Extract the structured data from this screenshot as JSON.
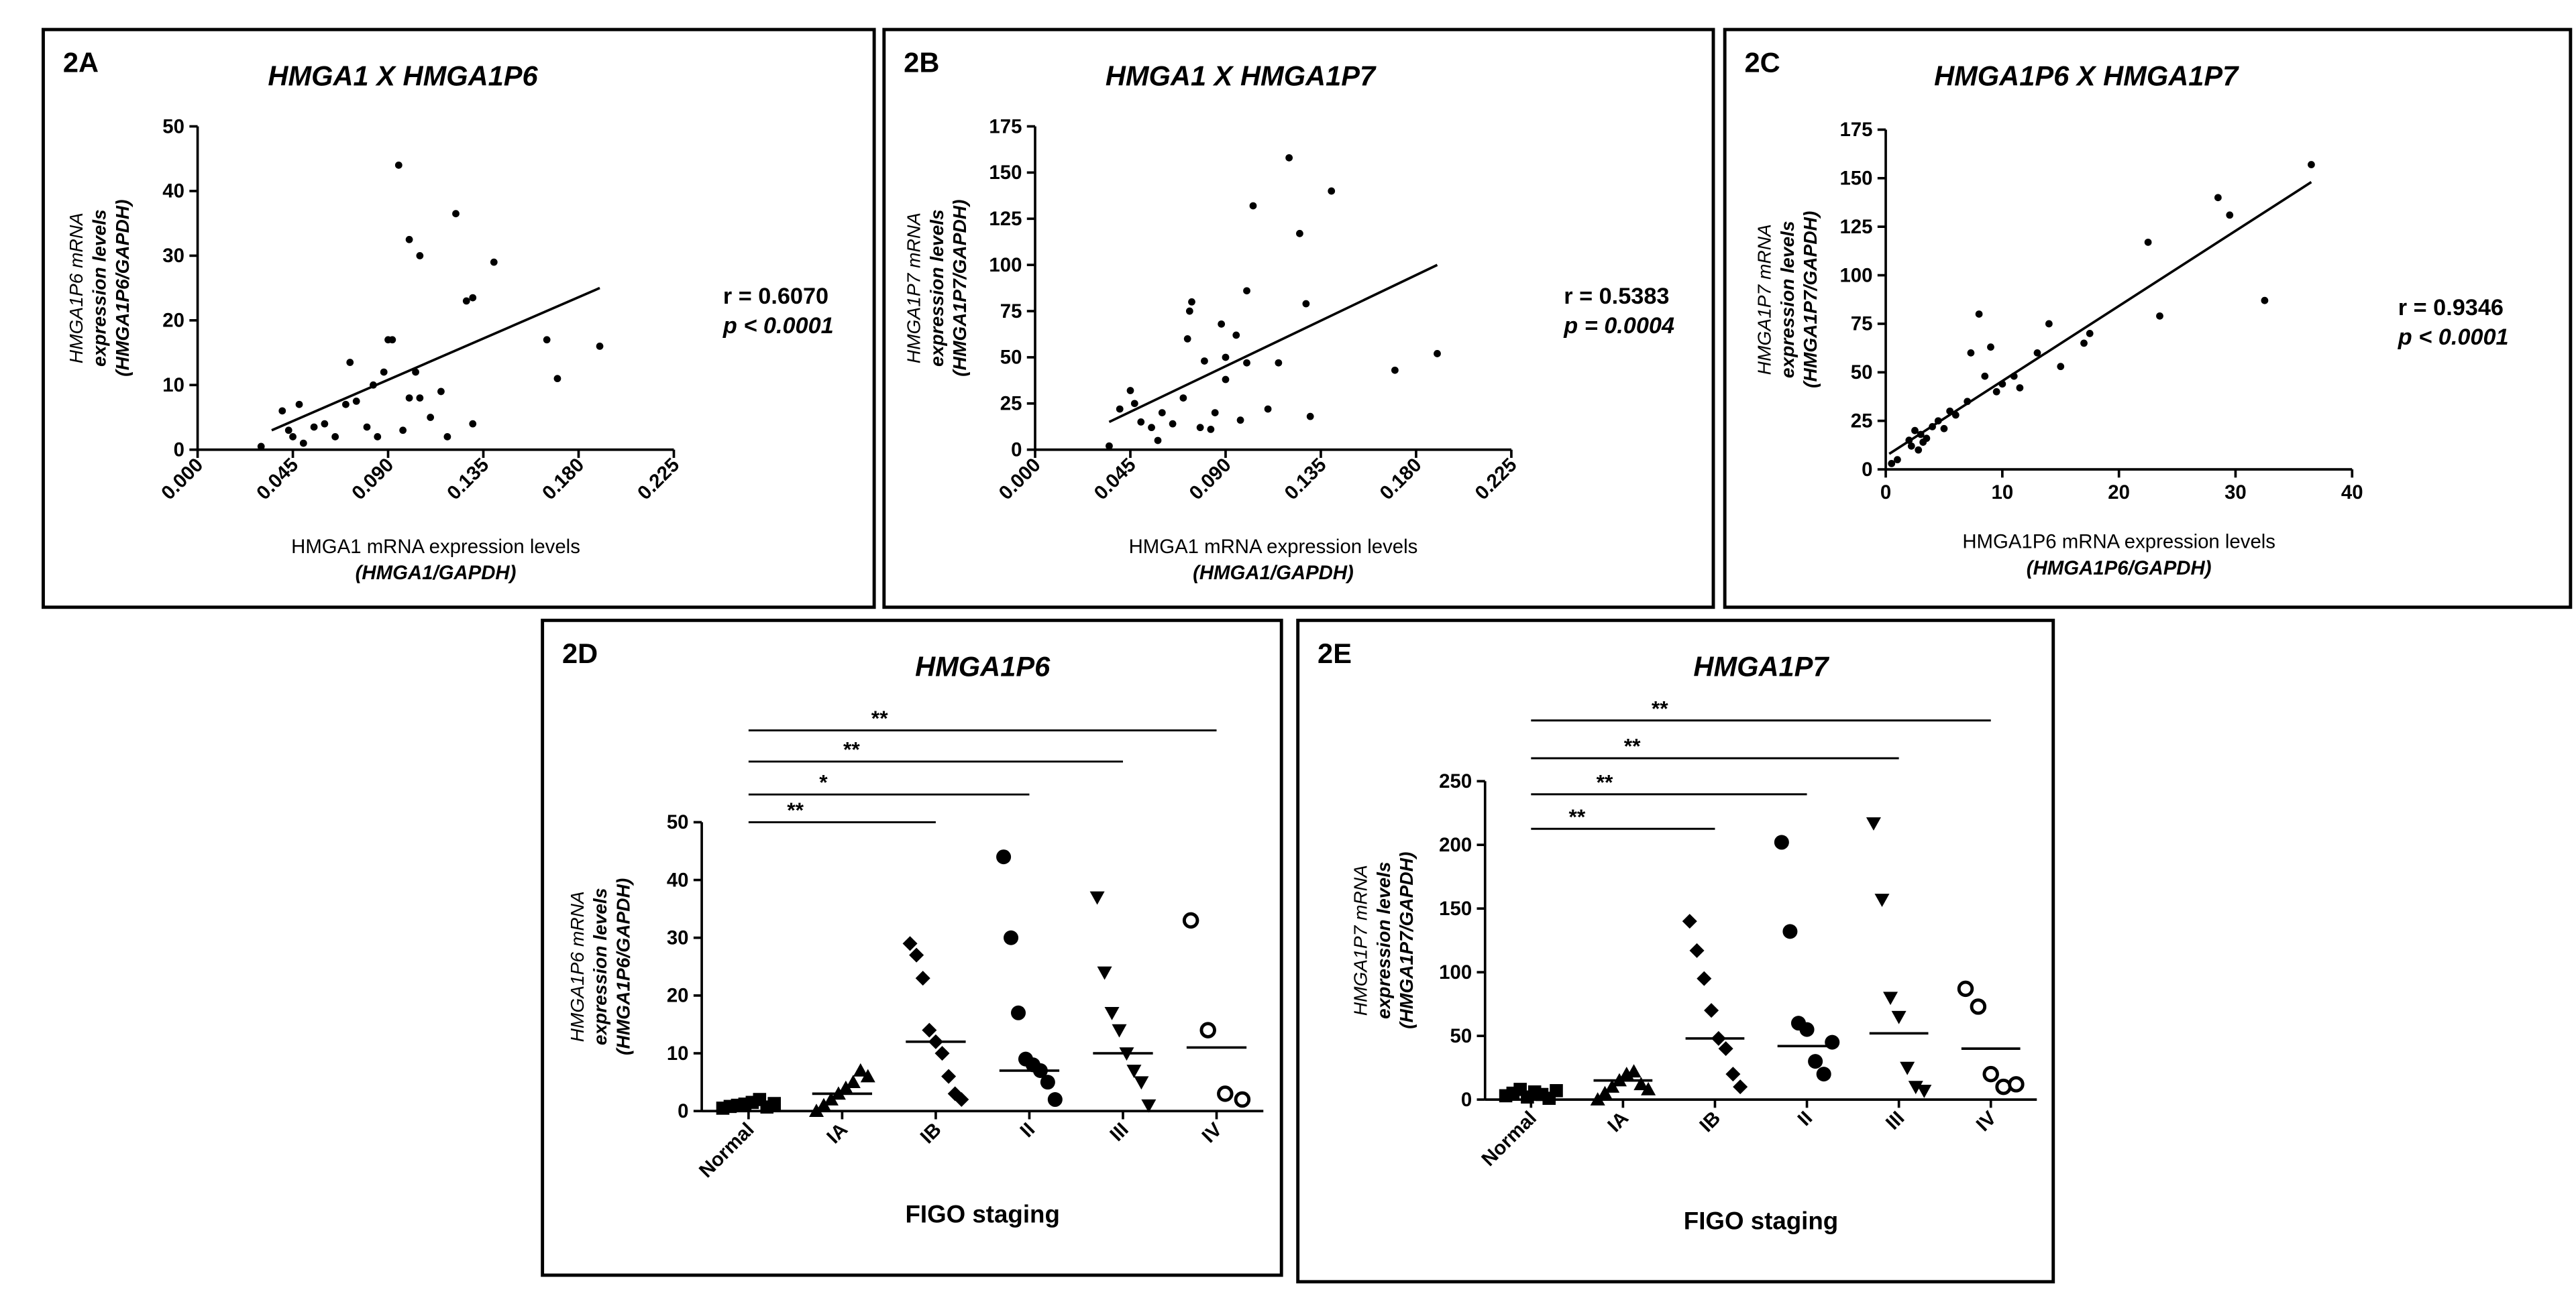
{
  "chart_data": [
    {
      "type": "scatter",
      "panel": "2A",
      "title": "HMGA1 X HMGA1P6",
      "xlabel": [
        "HMGA1 mRNA expression levels",
        "(HMGA1/GAPDH)"
      ],
      "ylabel": [
        "HMGA1P6 mRNA",
        "expression levels",
        "(HMGA1P6/GAPDH)"
      ],
      "annotation": [
        "r = 0.6070",
        "p < 0.0001"
      ],
      "xlim": [
        0,
        0.225
      ],
      "ylim": [
        0,
        50
      ],
      "xticks": [
        {
          "value": 0,
          "label": "0.000"
        },
        {
          "value": 0.045,
          "label": "0.045"
        },
        {
          "value": 0.09,
          "label": "0.090"
        },
        {
          "value": 0.135,
          "label": "0.135"
        },
        {
          "value": 0.18,
          "label": "0.180"
        },
        {
          "value": 0.225,
          "label": "0.225"
        }
      ],
      "yticks": [
        0,
        10,
        20,
        30,
        40,
        50
      ],
      "color": "#000000",
      "x": [
        0.03,
        0.04,
        0.043,
        0.045,
        0.048,
        0.05,
        0.055,
        0.06,
        0.065,
        0.07,
        0.072,
        0.075,
        0.08,
        0.083,
        0.085,
        0.088,
        0.09,
        0.092,
        0.095,
        0.097,
        0.1,
        0.1,
        0.103,
        0.105,
        0.105,
        0.11,
        0.115,
        0.118,
        0.122,
        0.127,
        0.13,
        0.13,
        0.14,
        0.165,
        0.17,
        0.19
      ],
      "y": [
        0.5,
        6,
        3,
        2,
        7,
        1,
        3.5,
        4,
        2,
        7,
        13.5,
        7.5,
        3.5,
        10,
        2,
        12,
        17,
        17,
        44,
        3,
        32.5,
        8,
        12,
        8,
        30,
        5,
        9,
        2,
        36.5,
        23,
        23.5,
        4,
        29,
        17,
        11,
        16
      ],
      "trend": {
        "x": [
          0.035,
          0.19
        ],
        "y": [
          3,
          25
        ]
      }
    },
    {
      "type": "scatter",
      "panel": "2B",
      "title": "HMGA1 X HMGA1P7",
      "xlabel": [
        "HMGA1 mRNA expression levels",
        "(HMGA1/GAPDH)"
      ],
      "ylabel": [
        "HMGA1P7 mRNA",
        "expression levels",
        "(HMGA1P7/GAPDH)"
      ],
      "annotation": [
        "r = 0.5383",
        "p = 0.0004"
      ],
      "xlim": [
        0,
        0.225
      ],
      "ylim": [
        0,
        175
      ],
      "xticks": [
        {
          "value": 0,
          "label": "0.000"
        },
        {
          "value": 0.045,
          "label": "0.045"
        },
        {
          "value": 0.09,
          "label": "0.090"
        },
        {
          "value": 0.135,
          "label": "0.135"
        },
        {
          "value": 0.18,
          "label": "0.180"
        },
        {
          "value": 0.225,
          "label": "0.225"
        }
      ],
      "yticks": [
        0,
        25,
        50,
        75,
        100,
        125,
        150,
        175
      ],
      "color": "#000000",
      "x": [
        0.035,
        0.04,
        0.045,
        0.047,
        0.05,
        0.055,
        0.058,
        0.06,
        0.065,
        0.07,
        0.072,
        0.073,
        0.074,
        0.078,
        0.08,
        0.083,
        0.085,
        0.088,
        0.09,
        0.09,
        0.095,
        0.097,
        0.1,
        0.1,
        0.103,
        0.11,
        0.115,
        0.12,
        0.125,
        0.128,
        0.13,
        0.14,
        0.17,
        0.19
      ],
      "y": [
        2,
        22,
        32,
        25,
        15,
        12,
        5,
        20,
        14,
        28,
        60,
        75,
        80,
        12,
        48,
        11,
        20,
        68,
        50,
        38,
        62,
        16,
        86,
        47,
        132,
        22,
        47,
        158,
        117,
        79,
        18,
        140,
        43,
        52
      ],
      "trend": {
        "x": [
          0.035,
          0.19
        ],
        "y": [
          15,
          100
        ]
      }
    },
    {
      "type": "scatter",
      "panel": "2C",
      "title": "HMGA1P6 X HMGA1P7",
      "xlabel": [
        "HMGA1P6 mRNA expression levels",
        "(HMGA1P6/GAPDH)"
      ],
      "ylabel": [
        "HMGA1P7 mRNA",
        "expression levels",
        "(HMGA1P7/GAPDH)"
      ],
      "annotation": [
        "r = 0.9346",
        "p < 0.0001"
      ],
      "xlim": [
        0,
        40
      ],
      "ylim": [
        0,
        175
      ],
      "xticks": [
        0,
        10,
        20,
        30,
        40
      ],
      "yticks": [
        0,
        25,
        50,
        75,
        100,
        125,
        150,
        175
      ],
      "color": "#000000",
      "x": [
        0.5,
        1,
        2,
        2.2,
        2.5,
        2.8,
        3,
        3.2,
        3.5,
        4,
        4.5,
        5,
        5.5,
        6,
        7,
        7.3,
        8,
        8.5,
        9,
        9.5,
        10,
        11,
        11.5,
        13,
        14,
        15,
        17,
        17.5,
        22.5,
        23.5,
        28.5,
        29.5,
        32.5,
        36.5
      ],
      "y": [
        3,
        5,
        15,
        12,
        20,
        10,
        18,
        14,
        16,
        22,
        25,
        21,
        30,
        28,
        35,
        60,
        80,
        48,
        63,
        40,
        44,
        48,
        42,
        60,
        75,
        53,
        65,
        70,
        117,
        79,
        140,
        131,
        87,
        157
      ],
      "trend": {
        "x": [
          0.3,
          36.5
        ],
        "y": [
          8,
          148
        ]
      }
    },
    {
      "type": "dot",
      "panel": "2D",
      "title": "HMGA1P6",
      "xlabel": [
        "FIGO staging"
      ],
      "ylabel": [
        "HMGA1P6 mRNA",
        "expression levels",
        "(HMGA1P6/GAPDH)"
      ],
      "ylim": [
        0,
        50
      ],
      "yticks": [
        0,
        10,
        20,
        30,
        40,
        50
      ],
      "color": "#000000",
      "categories": [
        "Normal",
        "IA",
        "IB",
        "II",
        "III",
        "IV"
      ],
      "markers": [
        "square",
        "triangle",
        "diamond",
        "circle",
        "triangle-down",
        "open-circle"
      ],
      "values": [
        [
          0.5,
          0.8,
          1,
          1.2,
          1.5,
          2,
          0.7,
          1.3
        ],
        [
          0,
          1,
          2,
          3,
          4,
          5,
          7,
          6
        ],
        [
          29,
          27,
          23,
          14,
          12,
          10,
          6,
          3,
          2
        ],
        [
          44,
          30,
          17,
          9,
          8,
          7,
          5,
          2
        ],
        [
          37,
          24,
          17,
          14,
          10,
          7,
          5,
          1
        ],
        [
          33,
          14,
          3,
          2
        ]
      ],
      "medians": [
        1.2,
        3,
        12,
        7,
        10,
        11
      ],
      "brackets": [
        {
          "label": "**",
          "from": 0,
          "to": 2,
          "y": 50
        },
        {
          "label": "*",
          "from": 0,
          "to": 3,
          "y": 54.8
        },
        {
          "label": "**",
          "from": 0,
          "to": 4,
          "y": 60.5
        },
        {
          "label": "**",
          "from": 0,
          "to": 5,
          "y": 65.9
        }
      ]
    },
    {
      "type": "dot",
      "panel": "2E",
      "title": "HMGA1P7",
      "xlabel": [
        "FIGO staging"
      ],
      "ylabel": [
        "HMGA1P7 mRNA",
        "expression levels",
        "(HMGA1P7/GAPDH)"
      ],
      "ylim": [
        0,
        250
      ],
      "yticks": [
        0,
        50,
        100,
        150,
        200,
        250
      ],
      "color": "#000000",
      "categories": [
        "Normal",
        "IA",
        "IB",
        "II",
        "III",
        "IV"
      ],
      "markers": [
        "square",
        "triangle",
        "diamond",
        "circle",
        "triangle-down",
        "open-circle"
      ],
      "values": [
        [
          3,
          5,
          8,
          2,
          6,
          4,
          1,
          7
        ],
        [
          0,
          5,
          10,
          15,
          20,
          22,
          12,
          8
        ],
        [
          140,
          117,
          95,
          70,
          48,
          40,
          20,
          10
        ],
        [
          202,
          132,
          60,
          55,
          30,
          20,
          45
        ],
        [
          217,
          157,
          80,
          65,
          25,
          10,
          7
        ],
        [
          87,
          73,
          20,
          10,
          12
        ]
      ],
      "medians": [
        5,
        15,
        48,
        42,
        52,
        40
      ],
      "brackets": [
        {
          "label": "**",
          "from": 0,
          "to": 2,
          "y": 212.6
        },
        {
          "label": "**",
          "from": 0,
          "to": 3,
          "y": 239.7
        },
        {
          "label": "**",
          "from": 0,
          "to": 4,
          "y": 268
        },
        {
          "label": "**",
          "from": 0,
          "to": 5,
          "y": 297.7
        }
      ]
    }
  ]
}
